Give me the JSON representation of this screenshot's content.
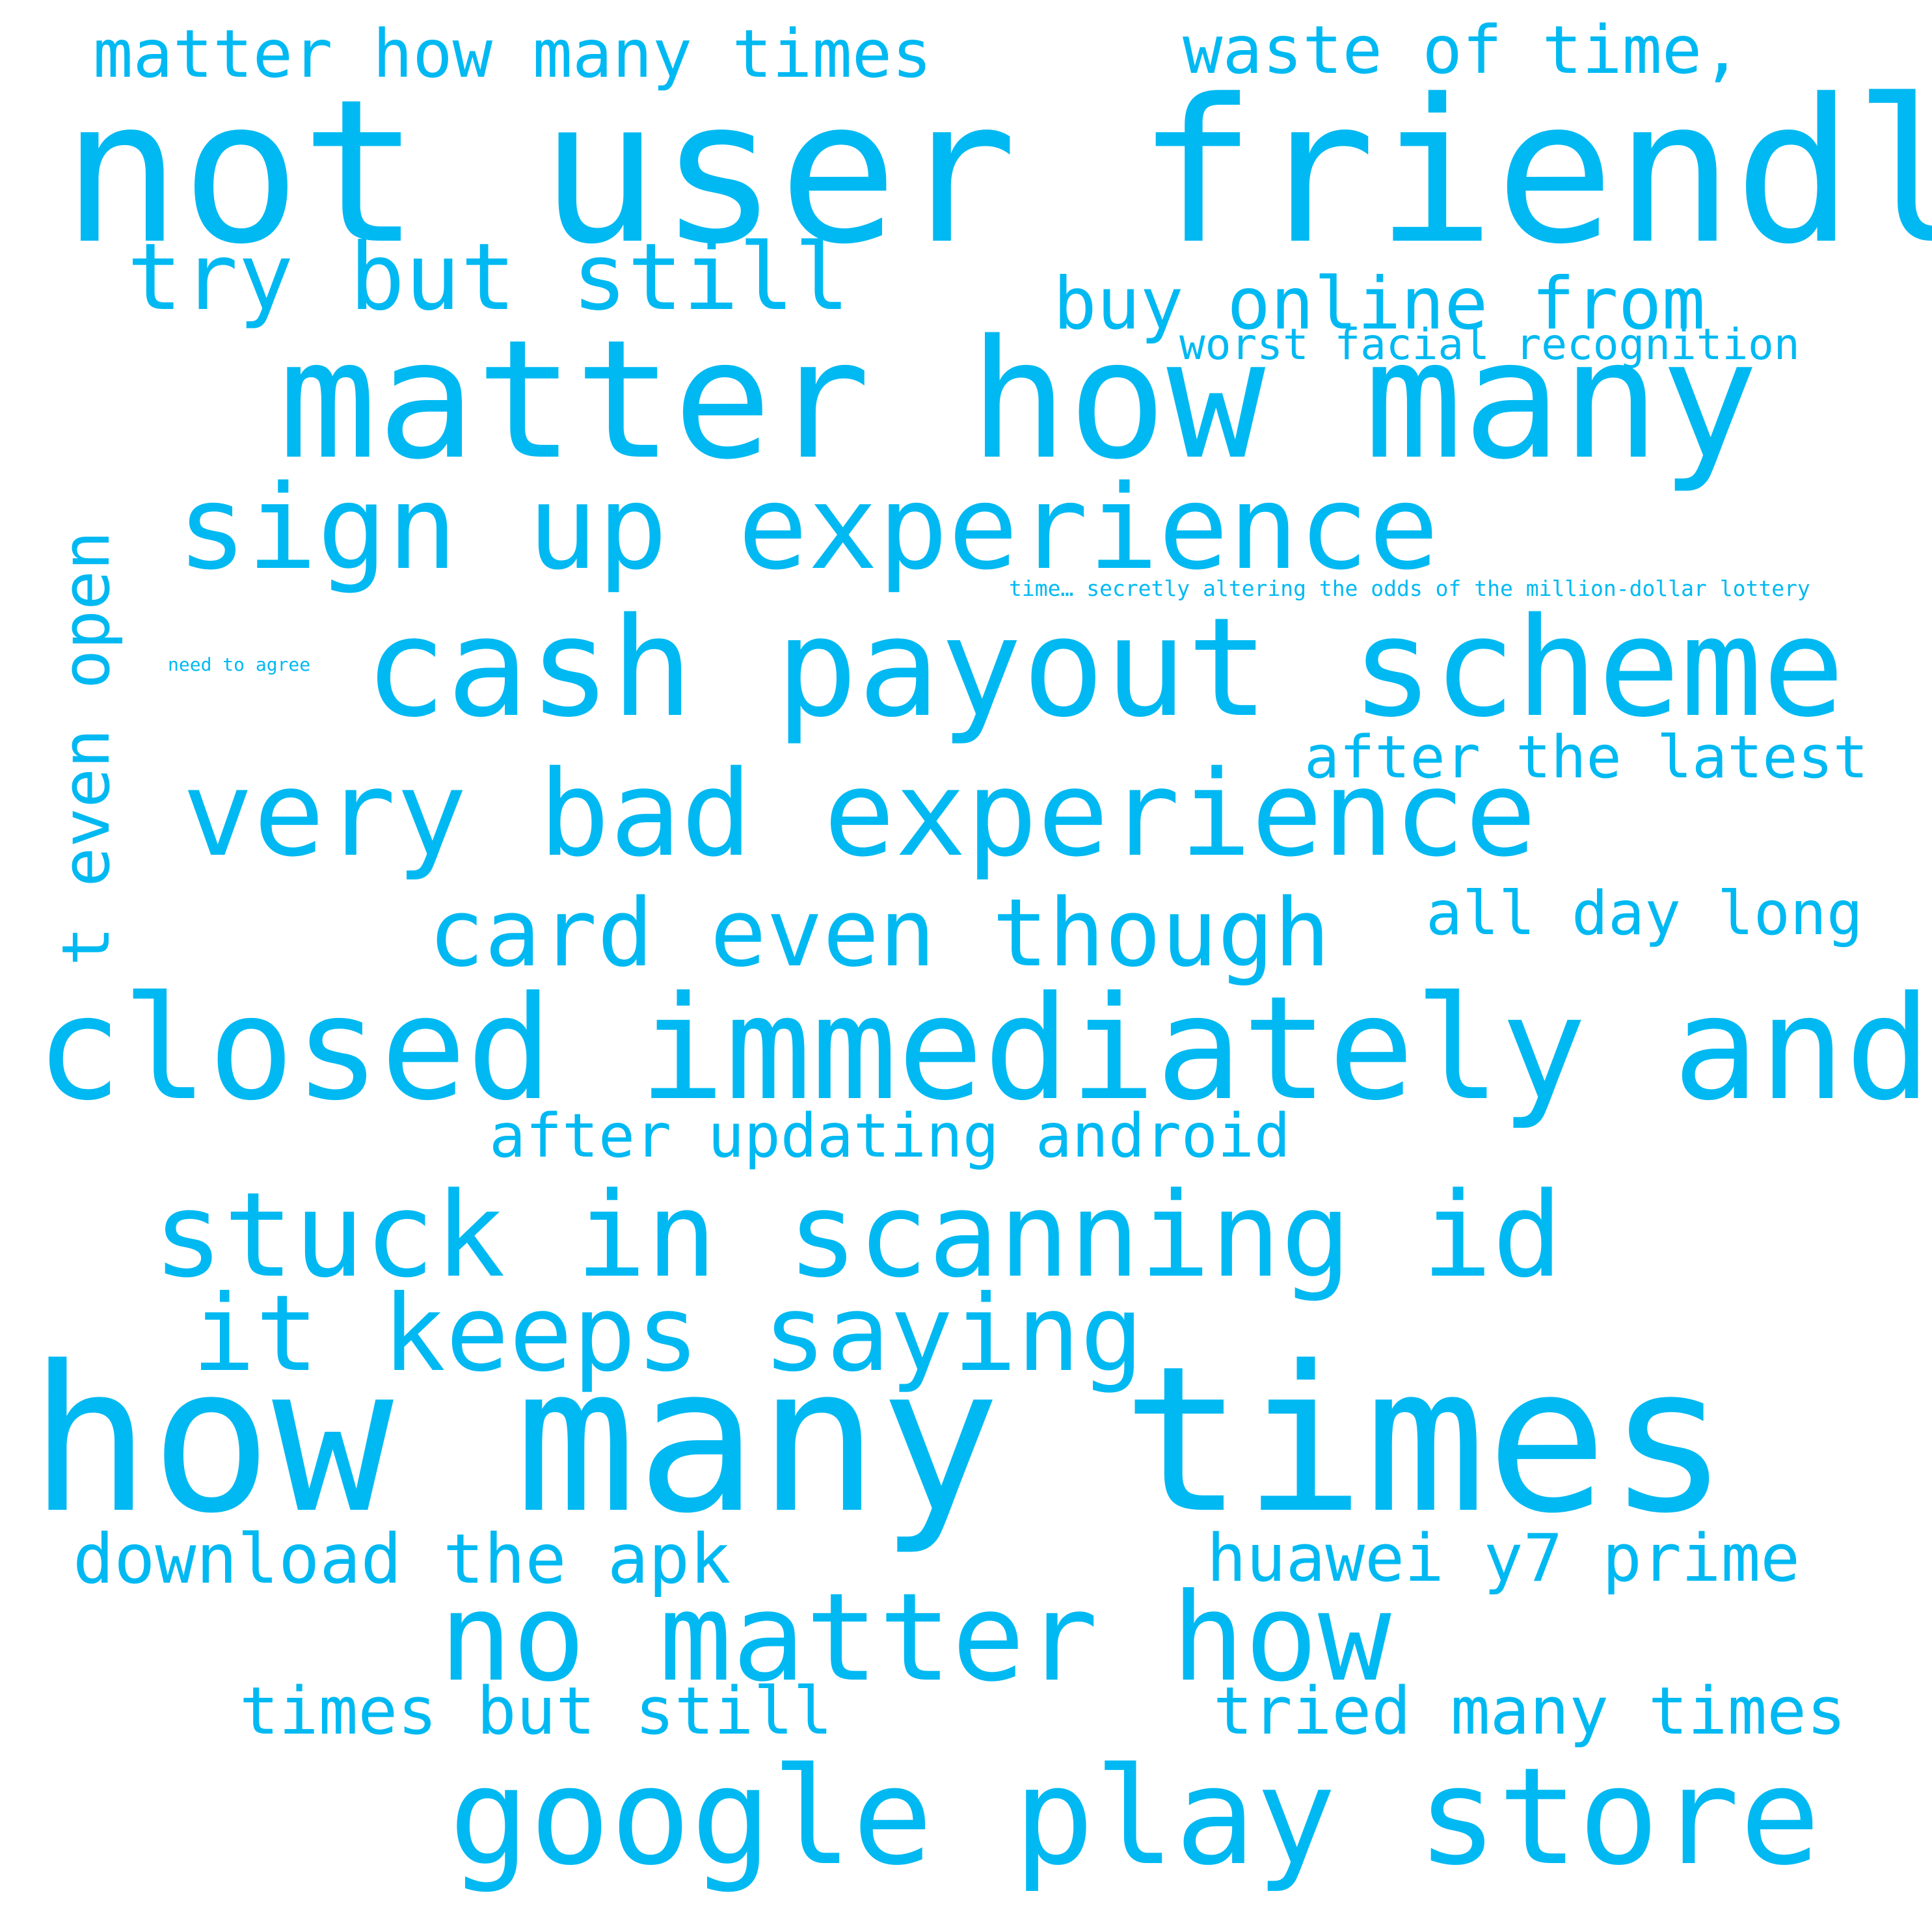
{
  "style": {
    "background": "#ffffff",
    "word_color": "#00b9f2"
  },
  "phrases": [
    "matter how many times",
    "waste of time,",
    "not user friendly",
    "try but still",
    "buy online from",
    "worst facial recognition",
    "matter how many",
    "sign up experience",
    "time… secretly altering the odds of the million-dollar lottery",
    "need to agree",
    "cash payout scheme",
    "after the latest",
    "very bad experience",
    "all day long",
    "card even though",
    "closed immediately and",
    "after updating android",
    "stuck in scanning id",
    "it keeps saying",
    "how many times",
    "download the apk",
    "huawei y7 prime",
    "no matter how",
    "times but still",
    "tried many times",
    "google play store",
    "t even open"
  ]
}
